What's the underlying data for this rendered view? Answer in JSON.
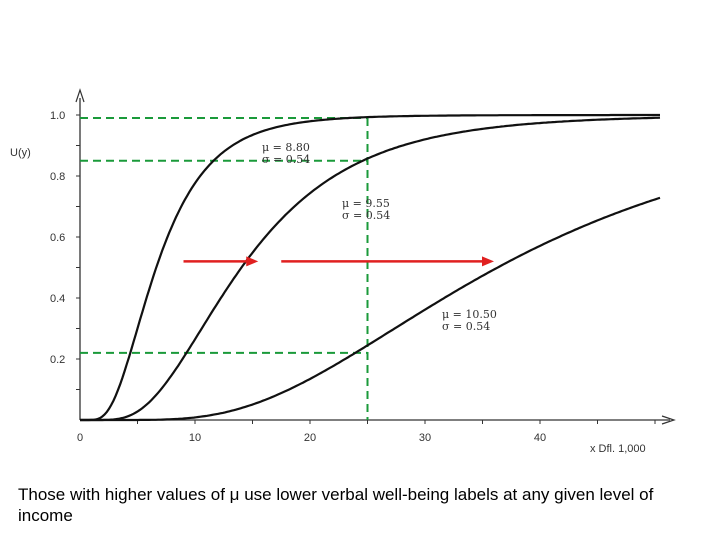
{
  "caption": "Those with higher values of μ use lower verbal well-being labels at any given level of income",
  "colors": {
    "curve": "#111111",
    "guide": "#1a9a3a",
    "arrow": "#e02020"
  },
  "chart_data": {
    "type": "line",
    "title": "",
    "ylabel": "U(y)",
    "xlabel": "x Dfl. 1,000",
    "xlim": [
      0,
      50
    ],
    "ylim": [
      0,
      1.05
    ],
    "x_ticks": [
      "0",
      "10",
      "20",
      "30",
      "40"
    ],
    "x_tick_values": [
      0,
      10,
      20,
      30,
      40
    ],
    "y_ticks": [
      "1.0",
      "0.8",
      "0.6",
      "0.4",
      "0.2"
    ],
    "y_tick_values": [
      1.0,
      0.8,
      0.6,
      0.4,
      0.2
    ],
    "grid": false,
    "series": [
      {
        "mu_label": "μ = 8.80",
        "sigma_label": "σ = 0.54",
        "mu": 8.8,
        "sigma": 0.54
      },
      {
        "mu_label": "μ = 9.55",
        "sigma_label": "σ = 0.54",
        "mu": 9.55,
        "sigma": 0.54
      },
      {
        "mu_label": "μ = 10.50",
        "sigma_label": "σ =  0.54",
        "mu": 10.5,
        "sigma": 0.54
      }
    ],
    "reference_income": 25,
    "reference_levels": [
      0.99,
      0.85,
      0.22
    ],
    "arrows": [
      {
        "from": 9,
        "to": 15.5,
        "level": 0.52
      },
      {
        "from": 17.5,
        "to": 36,
        "level": 0.52
      }
    ]
  }
}
